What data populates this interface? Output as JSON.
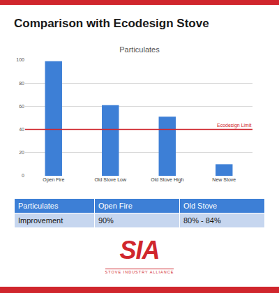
{
  "header": {
    "title": "Comparison with Ecodesign Stove"
  },
  "chart_data": {
    "type": "bar",
    "title": "Particulates",
    "categories": [
      "Open Fire",
      "Old Stove Low",
      "Old Stove High",
      "New Stove"
    ],
    "values": [
      99,
      61,
      51,
      10
    ],
    "color": "#3d7fd6",
    "ylim": [
      0,
      100
    ],
    "yticks": [
      0,
      20,
      40,
      60,
      80,
      100
    ],
    "grid": true,
    "annotations": [
      {
        "text": "Ecodesign Limit",
        "y": 40,
        "color": "#d0262d"
      }
    ]
  },
  "table": {
    "rows": [
      [
        "Particulates",
        "Open Fire",
        "Old Stove"
      ],
      [
        "Improvement",
        "90%",
        "80% - 84%"
      ]
    ]
  },
  "logo": {
    "text": "SIA",
    "subtitle": "STOVE INDUSTRY ALLIANCE"
  }
}
